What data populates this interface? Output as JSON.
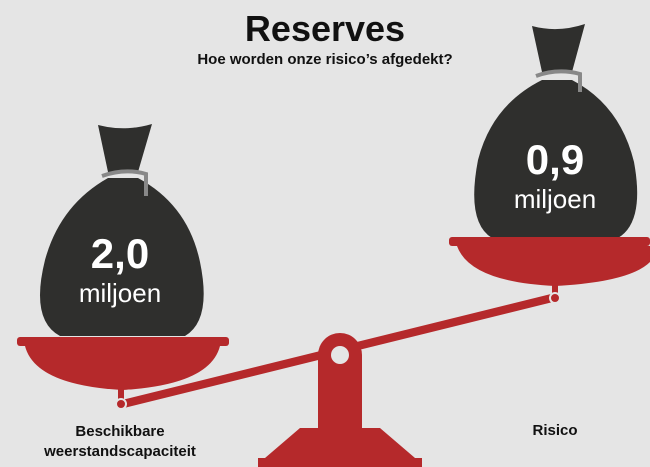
{
  "header": {
    "title": "Reserves",
    "subtitle": "Hoe worden onze risico’s afgedekt?"
  },
  "items": [
    {
      "value": "2,0",
      "unit": "miljoen",
      "label": "Beschikbare weerstandscapaciteit"
    },
    {
      "value": "0,9",
      "unit": "miljoen",
      "label": "Risico"
    }
  ]
}
